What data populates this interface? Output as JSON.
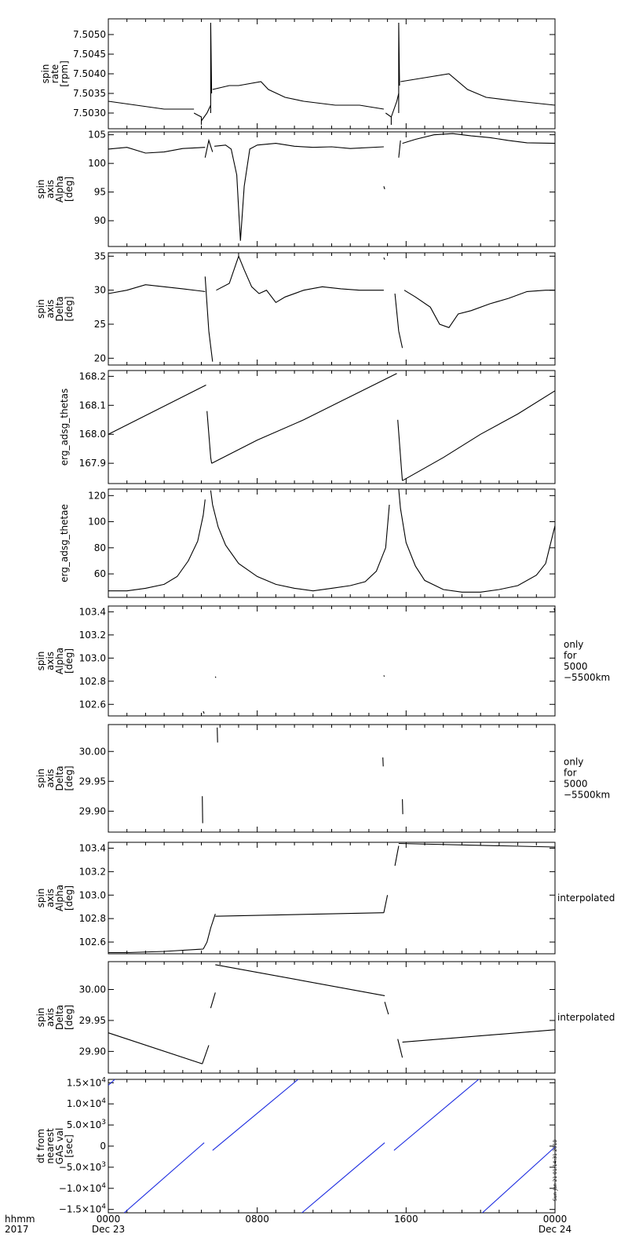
{
  "figure": {
    "stamp": "Sun Jan 21 01:14:31 2018",
    "time_axis": {
      "row1_label": "hhmm",
      "row2_label": "2017",
      "ticks": [
        {
          "hour": 0,
          "hhmm": "0000",
          "date": "Dec 23"
        },
        {
          "hour": 8,
          "hhmm": "0800",
          "date": ""
        },
        {
          "hour": 16,
          "hhmm": "1600",
          "date": ""
        },
        {
          "hour": 24,
          "hhmm": "0000",
          "date": "Dec 24"
        }
      ],
      "range_hours": [
        0,
        24
      ]
    }
  },
  "chart_data": [
    {
      "type": "scatter",
      "ylabel_lines": [
        "spin",
        "rate",
        "[rpm]"
      ],
      "right_note": [],
      "ylim": [
        7.5026,
        7.5054
      ],
      "yticks": [
        "7.5030",
        "7.5035",
        "7.5040",
        "7.5045",
        "7.5050"
      ],
      "ytick_values": [
        7.503,
        7.5035,
        7.504,
        7.5045,
        7.505
      ],
      "color": "#000000",
      "series": [
        {
          "x": [
            0,
            1.5,
            3,
            4.6
          ],
          "y": [
            7.5033,
            7.5032,
            7.5031,
            7.5031
          ]
        },
        {
          "x": [
            4.6,
            5.0,
            5.0
          ],
          "y": [
            7.503,
            7.5029,
            7.5027
          ]
        },
        {
          "x": [
            5.0,
            5.3,
            5.5
          ],
          "y": [
            7.5028,
            7.503,
            7.5032
          ]
        },
        {
          "x": [
            5.5,
            5.5,
            5.55
          ],
          "y": [
            7.503,
            7.5053,
            7.5035
          ]
        },
        {
          "x": [
            5.6,
            6.5,
            7.0,
            8.2,
            8.6,
            9.5,
            10.5,
            12.2,
            13.5,
            14.8
          ],
          "y": [
            7.5036,
            7.5037,
            7.5037,
            7.5038,
            7.5036,
            7.5034,
            7.5033,
            7.5032,
            7.5032,
            7.5031
          ]
        },
        {
          "x": [
            14.9,
            15.2,
            15.2
          ],
          "y": [
            7.503,
            7.5029,
            7.5027
          ]
        },
        {
          "x": [
            15.2,
            15.5,
            15.6
          ],
          "y": [
            7.5029,
            7.5033,
            7.5035
          ]
        },
        {
          "x": [
            15.6,
            15.6,
            15.65
          ],
          "y": [
            7.503,
            7.5053,
            7.5037
          ]
        },
        {
          "x": [
            15.7,
            17.0,
            18.3,
            19.3,
            20.3,
            22.0,
            24.0
          ],
          "y": [
            7.5038,
            7.5039,
            7.504,
            7.5036,
            7.5034,
            7.5033,
            7.5032
          ]
        }
      ]
    },
    {
      "type": "scatter",
      "ylabel_lines": [
        "spin",
        "axis",
        "Alpha",
        "[deg]"
      ],
      "right_note": [],
      "ylim": [
        85.5,
        105.5
      ],
      "yticks": [
        "90",
        "95",
        "100",
        "105"
      ],
      "ytick_values": [
        90,
        95,
        100,
        105
      ],
      "color": "#000000",
      "series": [
        {
          "x": [
            0,
            1,
            2,
            3,
            4,
            5.2
          ],
          "y": [
            102.5,
            102.8,
            101.8,
            102.0,
            102.6,
            102.8
          ]
        },
        {
          "x": [
            5.2,
            5.4,
            5.6
          ],
          "y": [
            101.0,
            104.0,
            102.0
          ]
        },
        {
          "x": [
            5.7,
            6.3,
            6.6,
            6.9,
            7.0,
            7.1,
            7.3,
            7.6,
            8.0,
            9,
            10,
            11,
            12,
            13,
            14.8
          ],
          "y": [
            103.0,
            103.2,
            102.5,
            98.0,
            92.0,
            86.5,
            96.0,
            102.5,
            103.2,
            103.5,
            103.0,
            102.8,
            102.9,
            102.6,
            102.9
          ]
        },
        {
          "x": [
            14.8,
            14.85
          ],
          "y": [
            96.0,
            95.5
          ]
        },
        {
          "x": [
            15.6,
            15.7
          ],
          "y": [
            101.0,
            104.0
          ]
        },
        {
          "x": [
            15.8,
            16.5,
            17.5,
            18.5,
            19.5,
            20.5,
            21.5,
            22.5,
            24.0
          ],
          "y": [
            103.5,
            104.2,
            105.0,
            105.2,
            104.8,
            104.5,
            104.0,
            103.6,
            103.5
          ]
        }
      ]
    },
    {
      "type": "scatter",
      "ylabel_lines": [
        "spin",
        "axis",
        "Delta",
        "[deg]"
      ],
      "right_note": [],
      "ylim": [
        19,
        35.5
      ],
      "yticks": [
        "20",
        "25",
        "30",
        "35"
      ],
      "ytick_values": [
        20,
        25,
        30,
        35
      ],
      "color": "#000000",
      "series": [
        {
          "x": [
            0,
            1,
            2,
            3,
            4,
            5.2
          ],
          "y": [
            29.5,
            30.0,
            30.8,
            30.5,
            30.2,
            29.8
          ]
        },
        {
          "x": [
            5.2,
            5.4,
            5.6
          ],
          "y": [
            32.0,
            24.0,
            19.5
          ]
        },
        {
          "x": [
            5.8,
            6.5,
            7.0,
            7.3,
            7.7,
            8.1,
            8.5,
            9.0,
            9.5,
            10.5,
            11.5,
            12.5,
            13.5,
            14.8
          ],
          "y": [
            30.0,
            31.0,
            35.0,
            33.0,
            30.5,
            29.5,
            30.0,
            28.2,
            29.0,
            30.0,
            30.5,
            30.2,
            30.0,
            30.0
          ]
        },
        {
          "x": [
            14.8,
            14.85
          ],
          "y": [
            34.8,
            34.5
          ]
        },
        {
          "x": [
            15.4,
            15.6,
            15.8
          ],
          "y": [
            29.5,
            24.0,
            21.5
          ]
        },
        {
          "x": [
            15.9,
            16.5,
            17.3,
            17.8,
            18.3,
            18.8,
            19.5,
            20.5,
            21.5,
            22.5,
            23.5,
            24.0
          ],
          "y": [
            30.0,
            29.0,
            27.5,
            25.0,
            24.5,
            26.5,
            27.0,
            28.0,
            28.8,
            29.8,
            30.0,
            30.0
          ]
        }
      ]
    },
    {
      "type": "line",
      "ylabel_lines": [
        "erg_adsg_thetas"
      ],
      "right_note": [],
      "ylim": [
        167.83,
        168.22
      ],
      "yticks": [
        "167.9",
        "168.0",
        "168.1",
        "168.2"
      ],
      "ytick_values": [
        167.9,
        168.0,
        168.1,
        168.2
      ],
      "color": "#000000",
      "series": [
        {
          "x": [
            0,
            5.25
          ],
          "y": [
            168.0,
            168.17
          ]
        },
        {
          "x": [
            5.3,
            5.5,
            5.55
          ],
          "y": [
            168.08,
            167.92,
            167.9
          ]
        },
        {
          "x": [
            5.55,
            8,
            10.5,
            13,
            15.5
          ],
          "y": [
            167.9,
            167.98,
            168.05,
            168.13,
            168.21
          ]
        },
        {
          "x": [
            15.55,
            15.75,
            15.8
          ],
          "y": [
            168.05,
            167.88,
            167.84
          ]
        },
        {
          "x": [
            15.8,
            18,
            20,
            22,
            24
          ],
          "y": [
            167.84,
            167.92,
            168.0,
            168.07,
            168.15
          ]
        }
      ]
    },
    {
      "type": "line",
      "ylabel_lines": [
        "erg_adsg_thetae"
      ],
      "right_note": [],
      "ylim": [
        42,
        125
      ],
      "yticks": [
        "60",
        "80",
        "100",
        "120"
      ],
      "ytick_values": [
        60,
        80,
        100,
        120
      ],
      "color": "#000000",
      "series": [
        {
          "x": [
            0,
            1,
            2,
            3,
            3.7,
            4.3,
            4.8,
            5.1,
            5.2
          ],
          "y": [
            47,
            47,
            49,
            52,
            58,
            70,
            85,
            105,
            117
          ]
        },
        {
          "x": [
            5.5,
            5.6,
            5.9,
            6.3,
            7,
            8,
            9,
            10,
            11,
            12,
            13,
            13.8,
            14.4,
            14.9,
            15.1
          ],
          "y": [
            124,
            113,
            96,
            82,
            68,
            58,
            52,
            49,
            47,
            49,
            51,
            54,
            62,
            80,
            113
          ]
        },
        {
          "x": [
            15.6,
            15.7,
            16,
            16.5,
            17,
            18,
            19,
            20,
            21,
            22,
            23,
            23.5,
            24
          ],
          "y": [
            125,
            110,
            84,
            66,
            55,
            48,
            46,
            46,
            48,
            51,
            59,
            68,
            97
          ]
        }
      ]
    },
    {
      "type": "scatter",
      "ylabel_lines": [
        "spin",
        "axis",
        "Alpha",
        "[deg]"
      ],
      "right_note": [
        "only",
        "for",
        "5000",
        "−5500km"
      ],
      "ylim": [
        102.5,
        103.45
      ],
      "yticks": [
        "102.6",
        "102.8",
        "103.0",
        "103.2",
        "103.4"
      ],
      "ytick_values": [
        102.6,
        102.8,
        103.0,
        103.2,
        103.4
      ],
      "color": "#000000",
      "series": [
        {
          "x": [
            5.1,
            5.15
          ],
          "y": [
            102.54,
            102.52
          ]
        },
        {
          "x": [
            5.75,
            5.78
          ],
          "y": [
            102.84,
            102.83
          ]
        },
        {
          "x": [
            14.8,
            14.83
          ],
          "y": [
            102.85,
            102.84
          ]
        },
        {
          "x": [
            23.95,
            24.0
          ],
          "y": [
            103.43,
            103.4
          ]
        }
      ]
    },
    {
      "type": "scatter",
      "ylabel_lines": [
        "spin",
        "axis",
        "Delta",
        "[deg]"
      ],
      "right_note": [
        "only",
        "for",
        "5000",
        "−5500km"
      ],
      "ylim": [
        29.865,
        30.045
      ],
      "yticks": [
        "29.90",
        "29.95",
        "30.00"
      ],
      "ytick_values": [
        29.9,
        29.95,
        30.0
      ],
      "color": "#000000",
      "series": [
        {
          "x": [
            5.05,
            5.07
          ],
          "y": [
            29.925,
            29.88
          ]
        },
        {
          "x": [
            5.85,
            5.87
          ],
          "y": [
            30.04,
            30.015
          ]
        },
        {
          "x": [
            14.75,
            14.77
          ],
          "y": [
            29.99,
            29.975
          ]
        },
        {
          "x": [
            15.8,
            15.82
          ],
          "y": [
            29.92,
            29.895
          ]
        },
        {
          "x": [
            23.95,
            24.0
          ],
          "y": [
            29.87,
            29.868
          ]
        }
      ]
    },
    {
      "type": "line",
      "ylabel_lines": [
        "spin",
        "axis",
        "Alpha",
        "[deg]"
      ],
      "right_note": [
        "interpolated"
      ],
      "ylim": [
        102.5,
        103.45
      ],
      "yticks": [
        "102.6",
        "102.8",
        "103.0",
        "103.2",
        "103.4"
      ],
      "ytick_values": [
        102.6,
        102.8,
        103.0,
        103.2,
        103.4
      ],
      "color": "#000000",
      "series": [
        {
          "x": [
            0,
            1,
            3,
            5.1
          ],
          "y": [
            102.51,
            102.51,
            102.52,
            102.54
          ]
        },
        {
          "x": [
            5.1,
            5.3,
            5.5,
            5.75
          ],
          "y": [
            102.54,
            102.6,
            102.72,
            102.84
          ]
        },
        {
          "x": [
            5.75,
            14.8
          ],
          "y": [
            102.82,
            102.85
          ]
        },
        {
          "x": [
            14.8,
            15.0
          ],
          "y": [
            102.85,
            103.0
          ]
        },
        {
          "x": [
            15.4,
            15.6
          ],
          "y": [
            103.25,
            103.42
          ]
        },
        {
          "x": [
            15.6,
            24.0
          ],
          "y": [
            103.44,
            103.41
          ]
        }
      ]
    },
    {
      "type": "line",
      "ylabel_lines": [
        "spin",
        "axis",
        "Delta",
        "[deg]"
      ],
      "right_note": [
        "interpolated"
      ],
      "ylim": [
        29.865,
        30.045
      ],
      "yticks": [
        "29.90",
        "29.95",
        "30.00"
      ],
      "ytick_values": [
        29.9,
        29.95,
        30.0
      ],
      "color": "#000000",
      "series": [
        {
          "x": [
            0,
            5.05
          ],
          "y": [
            29.93,
            29.88
          ]
        },
        {
          "x": [
            5.05,
            5.4
          ],
          "y": [
            29.88,
            29.91
          ]
        },
        {
          "x": [
            5.5,
            5.75
          ],
          "y": [
            29.97,
            29.995
          ]
        },
        {
          "x": [
            5.75,
            14.85
          ],
          "y": [
            30.04,
            29.99
          ]
        },
        {
          "x": [
            14.85,
            15.05
          ],
          "y": [
            29.98,
            29.96
          ]
        },
        {
          "x": [
            15.55,
            15.8
          ],
          "y": [
            29.92,
            29.89
          ]
        },
        {
          "x": [
            15.8,
            24.0
          ],
          "y": [
            29.915,
            29.935
          ]
        }
      ]
    },
    {
      "type": "line",
      "ylabel_lines": [
        "dt from",
        "nearest",
        "GAS val",
        "[sec]"
      ],
      "right_note": [],
      "ylim": [
        -15800,
        15800
      ],
      "ytick_values": [
        -15000,
        -10000,
        -5000,
        0,
        5000,
        10000,
        15000
      ],
      "ytick_labels": [
        {
          "mantissa": "−1.5×10",
          "exp": "4"
        },
        {
          "mantissa": "−1.0×10",
          "exp": "4"
        },
        {
          "mantissa": "−5.0×10",
          "exp": "3"
        },
        {
          "mantissa": "0",
          "exp": ""
        },
        {
          "mantissa": "5.0×10",
          "exp": "3"
        },
        {
          "mantissa": "1.0×10",
          "exp": "4"
        },
        {
          "mantissa": "1.5×10",
          "exp": "4"
        }
      ],
      "color": "#1a2ae0",
      "series": [
        {
          "x": [
            0,
            0.35
          ],
          "y": [
            14400,
            15800
          ]
        },
        {
          "x": [
            0.85,
            5.15
          ],
          "y": [
            -15800,
            800
          ]
        },
        {
          "x": [
            5.6,
            10.2
          ],
          "y": [
            -1000,
            15800
          ]
        },
        {
          "x": [
            10.4,
            14.85
          ],
          "y": [
            -15800,
            800
          ]
        },
        {
          "x": [
            15.35,
            19.9
          ],
          "y": [
            -1000,
            15800
          ]
        },
        {
          "x": [
            20.1,
            24.0
          ],
          "y": [
            -15800,
            -200
          ]
        }
      ]
    }
  ]
}
